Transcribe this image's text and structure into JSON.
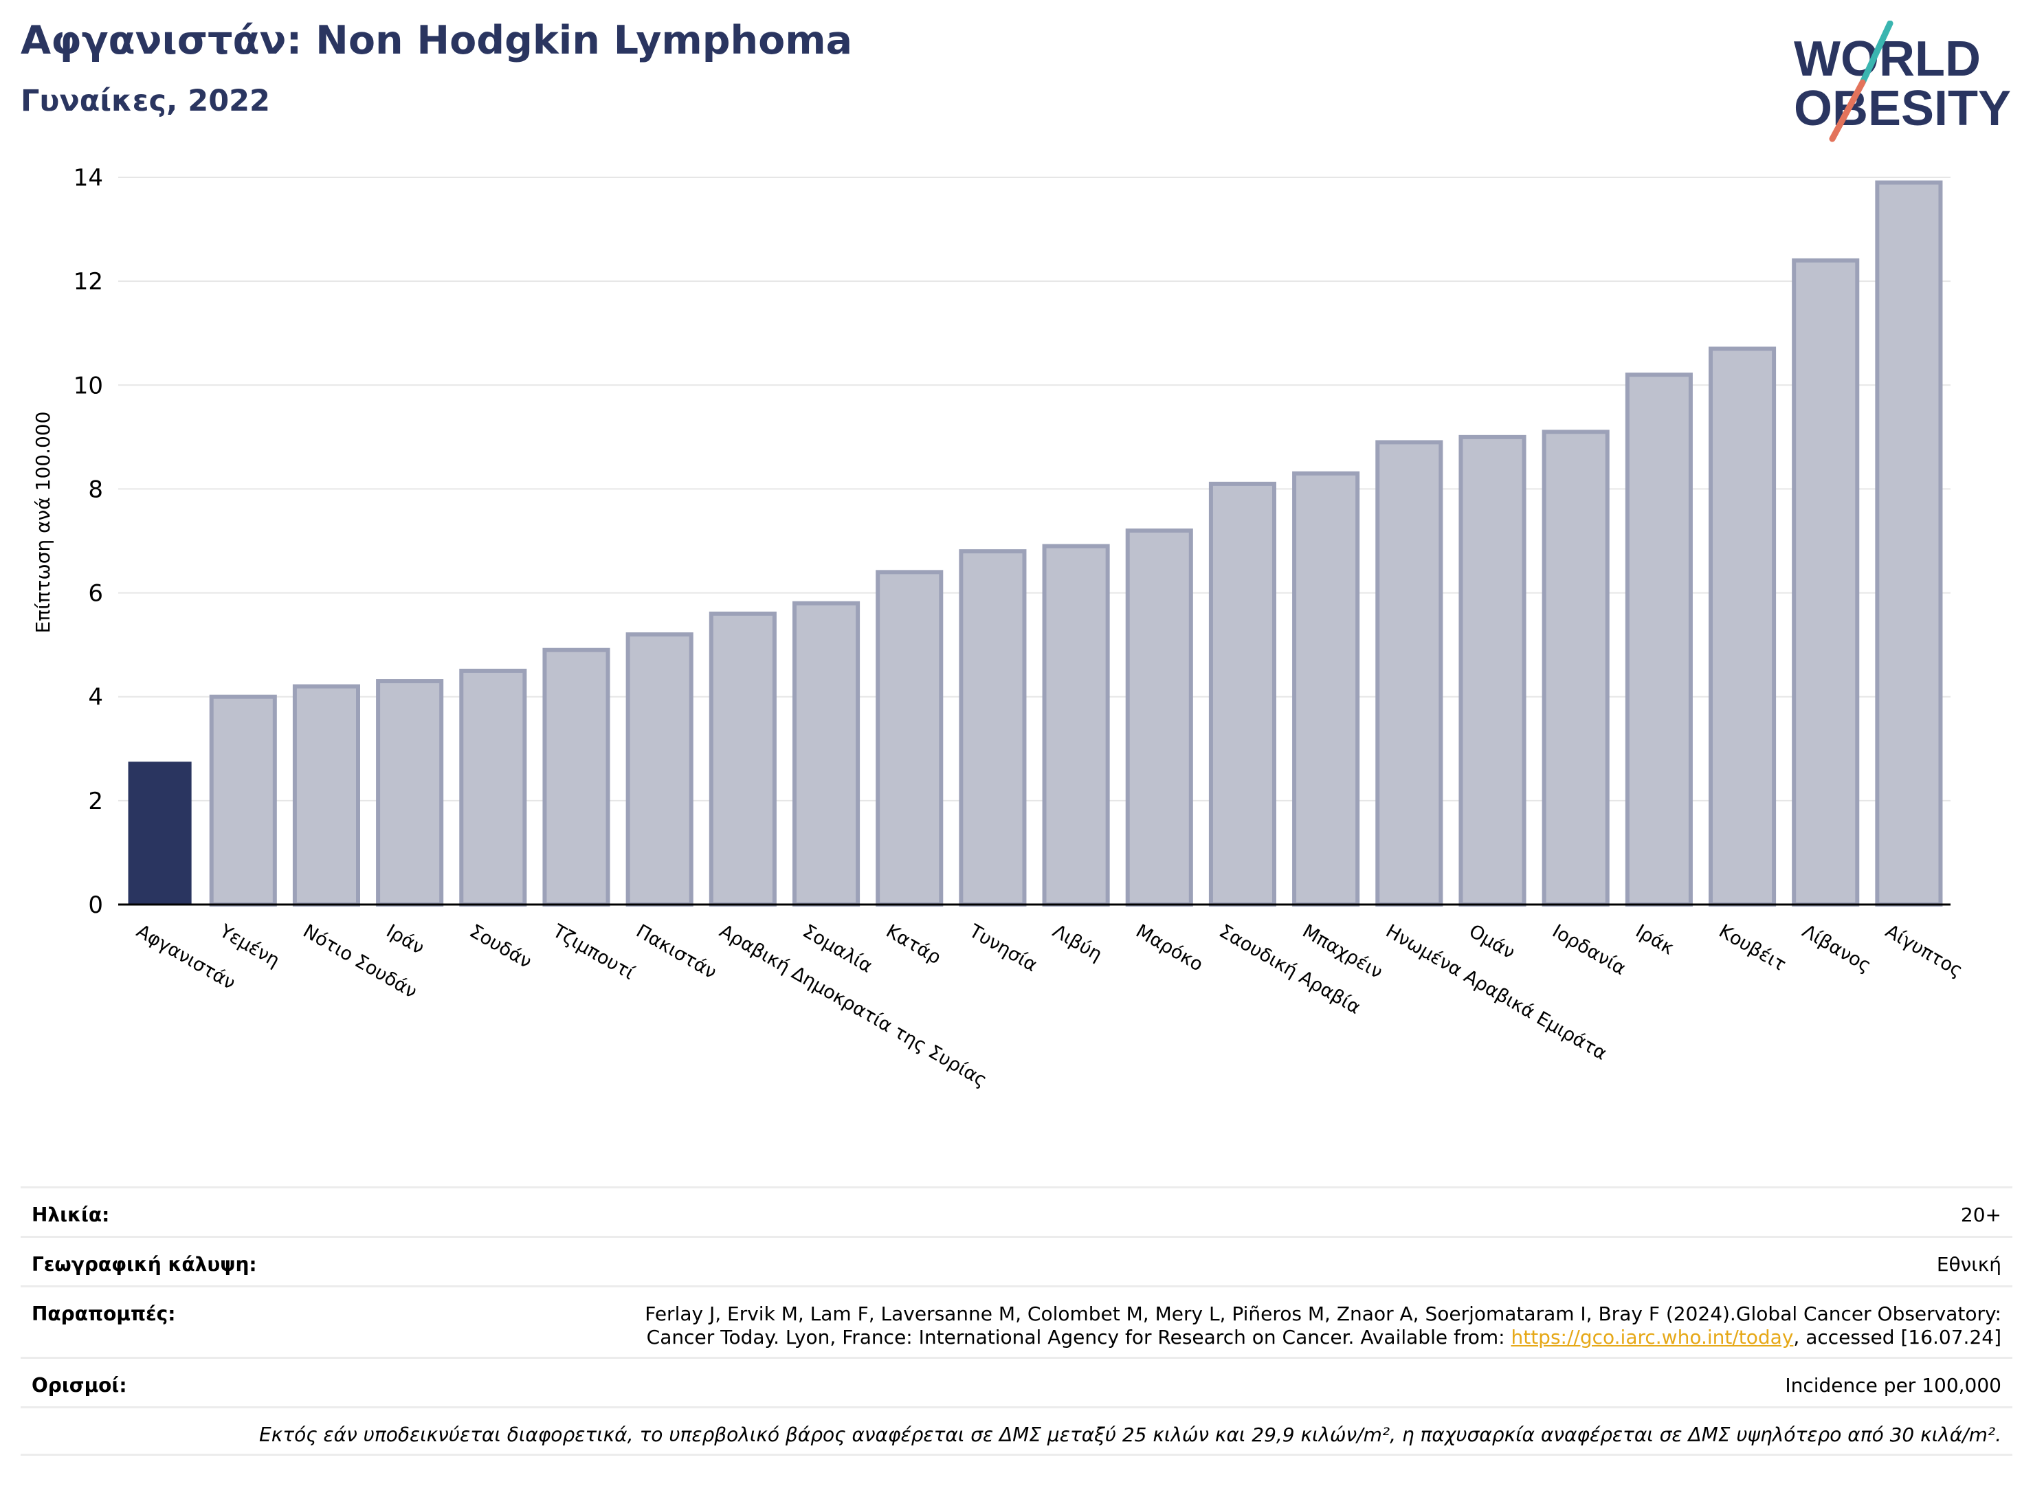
{
  "header": {
    "title": "Αφγανιστάν: Non Hodgkin Lymphoma",
    "subtitle": "Γυναίκες, 2022"
  },
  "logo": {
    "line1": "WORLD",
    "line2": "OBESITY",
    "colors": {
      "text": "#2a3560",
      "teal": "#3ab5b0",
      "coral": "#e3735b"
    }
  },
  "chart_data": {
    "type": "bar",
    "ylabel": "Επίπτωση ανά 100.000",
    "ylim": [
      0,
      14
    ],
    "yticks": [
      0,
      2,
      4,
      6,
      8,
      10,
      12,
      14
    ],
    "grid": true,
    "categories": [
      "Αφγανιστάν",
      "Υεμένη",
      "Νότιο Σουδάν",
      "Ιράν",
      "Σουδάν",
      "Τζιμπουτί",
      "Πακιστάν",
      "Αραβική Δημοκρατία της Συρίας",
      "Σομαλία",
      "Κατάρ",
      "Τυνησία",
      "Λιβύη",
      "Μαρόκο",
      "Σαουδική Αραβία",
      "Μπαχρέιν",
      "Ηνωμένα Αραβικά Εμιράτα",
      "Ομάν",
      "Ιορδανία",
      "Ιράκ",
      "Κουβέιτ",
      "Λίβανος",
      "Αίγυπτος"
    ],
    "values": [
      2.75,
      4.0,
      4.2,
      4.3,
      4.5,
      4.9,
      5.2,
      5.6,
      5.8,
      6.4,
      6.8,
      6.9,
      7.2,
      8.1,
      8.3,
      8.9,
      9.0,
      9.1,
      10.2,
      10.7,
      12.4,
      13.9
    ],
    "highlight_index": 0,
    "colors": {
      "highlight": "#2a3560",
      "bar_fill": "#bec1ce",
      "bar_edge": "#9ca1b8",
      "grid": "#e6e6e6"
    }
  },
  "meta": {
    "age_label": "Ηλικία:",
    "age_value": "20+",
    "coverage_label": "Γεωγραφική κάλυψη:",
    "coverage_value": "Εθνική",
    "refs_label": "Παραπομπές:",
    "refs_line1": "Ferlay J, Ervik M, Lam F, Laversanne M, Colombet M, Mery L, Piñeros M, Znaor A, Soerjomataram I, Bray F (2024).Global Cancer Observatory:",
    "refs_line2_pre": "Cancer Today. Lyon, France: International Agency for Research on Cancer. Available from: ",
    "refs_link": "https://gco.iarc.who.int/today",
    "refs_line2_post": ", accessed [16.07.24]",
    "defs_label": "Ορισμοί:",
    "defs_value": "Incidence per 100,000",
    "note": "Εκτός εάν υποδεικνύεται διαφορετικά, το υπερβολικό βάρος αναφέρεται σε ΔΜΣ μεταξύ 25 κιλών και 29,9 κιλών/m², η παχυσαρκία αναφέρεται σε ΔΜΣ υψηλότερο από 30 κιλά/m²."
  }
}
